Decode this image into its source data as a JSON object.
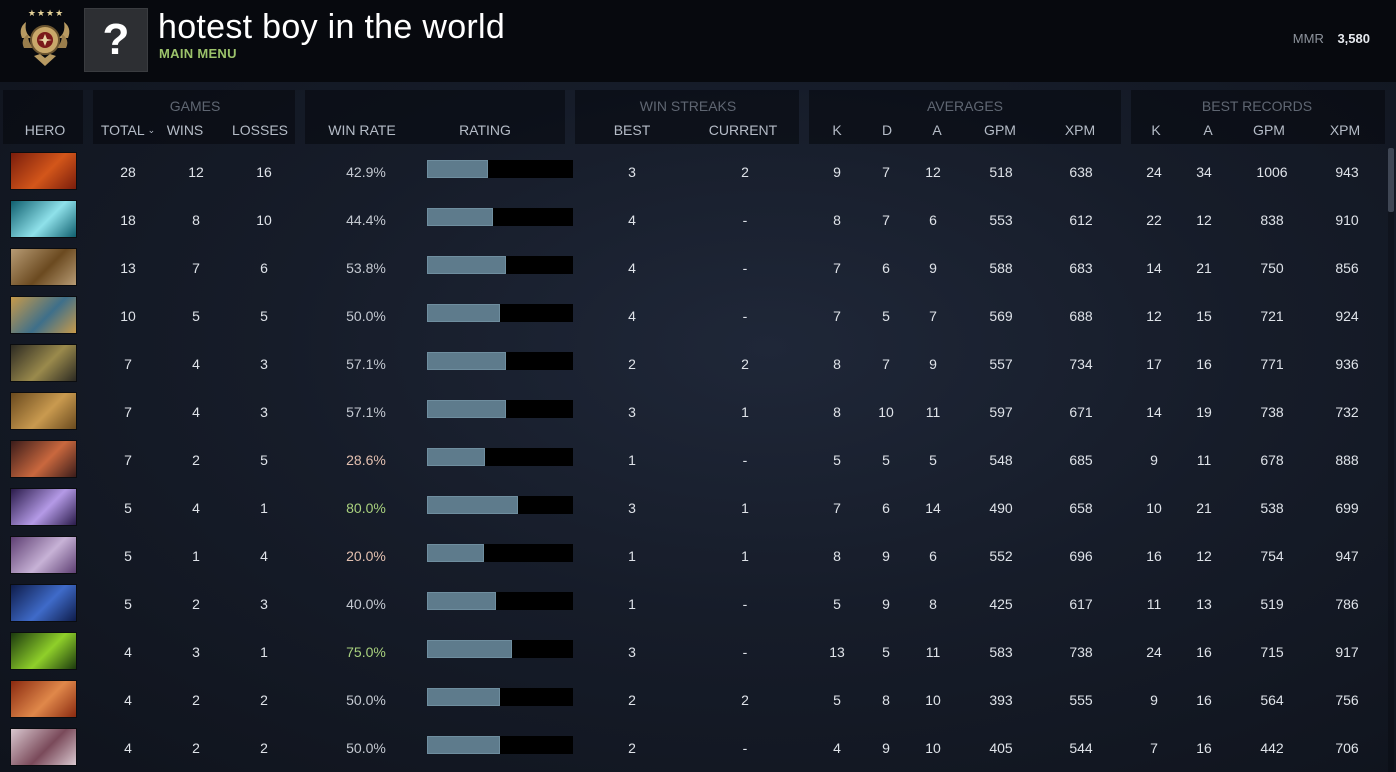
{
  "player": {
    "name": "hotest boy in the world",
    "subtitle": "MAIN MENU",
    "avatar_glyph": "?",
    "rank_stars": "★★★★",
    "mmr_label": "MMR",
    "mmr_value": "3,580"
  },
  "headers": {
    "hero": "HERO",
    "games": "GAMES",
    "total": "TOTAL",
    "sort_caret": "⌄",
    "wins": "WINS",
    "losses": "LOSSES",
    "win_rate": "WIN RATE",
    "rating": "RATING",
    "win_streaks": "WIN STREAKS",
    "best": "BEST",
    "current": "CURRENT",
    "averages": "AVERAGES",
    "k": "K",
    "d": "D",
    "a": "A",
    "gpm": "GPM",
    "xpm": "XPM",
    "best_records": "BEST RECORDS",
    "br_k": "K",
    "br_a": "A",
    "br_gpm": "GPM",
    "br_xpm": "XPM"
  },
  "colors": {
    "win_rate_high": "#a9d17e",
    "win_rate_low": "#e3c0b0",
    "win_rate_mid": "#c4c9d1",
    "rating_bar": "#5e7b8c",
    "main_menu": "#9cc36b"
  },
  "rows": [
    {
      "hero_icon": "hero-fire-warrior-portrait",
      "portrait": [
        "#7a1d0c",
        "#d3561a"
      ],
      "total": "28",
      "wins": "12",
      "losses": "16",
      "win_rate": "42.9%",
      "rating": 0.42,
      "best_streak": "3",
      "current_streak": "2",
      "k": "9",
      "d": "7",
      "a": "12",
      "gpm": "518",
      "xpm": "638",
      "best_k": "24",
      "best_a": "34",
      "best_gpm": "1006",
      "best_xpm": "943"
    },
    {
      "hero_icon": "hero-water-wave-portrait",
      "portrait": [
        "#0f5f6e",
        "#8fe1ea"
      ],
      "total": "18",
      "wins": "8",
      "losses": "10",
      "win_rate": "44.4%",
      "rating": 0.45,
      "best_streak": "4",
      "current_streak": "-",
      "k": "8",
      "d": "7",
      "a": "6",
      "gpm": "553",
      "xpm": "612",
      "best_k": "22",
      "best_a": "12",
      "best_gpm": "838",
      "best_xpm": "910"
    },
    {
      "hero_icon": "hero-beastmaster-portrait",
      "portrait": [
        "#b79b74",
        "#6b4a20"
      ],
      "total": "13",
      "wins": "7",
      "losses": "6",
      "win_rate": "53.8%",
      "rating": 0.54,
      "best_streak": "4",
      "current_streak": "-",
      "k": "7",
      "d": "6",
      "a": "9",
      "gpm": "588",
      "xpm": "683",
      "best_k": "14",
      "best_a": "21",
      "best_gpm": "750",
      "best_xpm": "856"
    },
    {
      "hero_icon": "hero-frost-knight-portrait",
      "portrait": [
        "#c79a4a",
        "#3e6f8a"
      ],
      "total": "10",
      "wins": "5",
      "losses": "5",
      "win_rate": "50.0%",
      "rating": 0.5,
      "best_streak": "4",
      "current_streak": "-",
      "k": "7",
      "d": "5",
      "a": "7",
      "gpm": "569",
      "xpm": "688",
      "best_k": "12",
      "best_a": "15",
      "best_gpm": "721",
      "best_xpm": "924"
    },
    {
      "hero_icon": "hero-masked-rider-portrait",
      "portrait": [
        "#2c2a22",
        "#9a8a4c"
      ],
      "total": "7",
      "wins": "4",
      "losses": "3",
      "win_rate": "57.1%",
      "rating": 0.54,
      "best_streak": "2",
      "current_streak": "2",
      "k": "8",
      "d": "7",
      "a": "9",
      "gpm": "557",
      "xpm": "734",
      "best_k": "17",
      "best_a": "16",
      "best_gpm": "771",
      "best_xpm": "936"
    },
    {
      "hero_icon": "hero-monkey-king-portrait",
      "portrait": [
        "#6a4a1e",
        "#c99a4f"
      ],
      "total": "7",
      "wins": "4",
      "losses": "3",
      "win_rate": "57.1%",
      "rating": 0.54,
      "best_streak": "3",
      "current_streak": "1",
      "k": "8",
      "d": "10",
      "a": "11",
      "gpm": "597",
      "xpm": "671",
      "best_k": "14",
      "best_a": "19",
      "best_gpm": "738",
      "best_xpm": "732"
    },
    {
      "hero_icon": "hero-hooded-assassin-portrait",
      "portrait": [
        "#3b1c1a",
        "#c9683e"
      ],
      "total": "7",
      "wins": "2",
      "losses": "5",
      "win_rate": "28.6%",
      "rating": 0.4,
      "best_streak": "1",
      "current_streak": "-",
      "k": "5",
      "d": "5",
      "a": "5",
      "gpm": "548",
      "xpm": "685",
      "best_k": "9",
      "best_a": "11",
      "best_gpm": "678",
      "best_xpm": "888"
    },
    {
      "hero_icon": "hero-void-spirit-portrait",
      "portrait": [
        "#2a1b4a",
        "#b49ae6"
      ],
      "total": "5",
      "wins": "4",
      "losses": "1",
      "win_rate": "80.0%",
      "rating": 0.62,
      "best_streak": "3",
      "current_streak": "1",
      "k": "7",
      "d": "6",
      "a": "14",
      "gpm": "490",
      "xpm": "658",
      "best_k": "10",
      "best_a": "21",
      "best_gpm": "538",
      "best_xpm": "699"
    },
    {
      "hero_icon": "hero-templar-portrait",
      "portrait": [
        "#5e3f73",
        "#c7b2d6"
      ],
      "total": "5",
      "wins": "1",
      "losses": "4",
      "win_rate": "20.0%",
      "rating": 0.39,
      "best_streak": "1",
      "current_streak": "1",
      "k": "8",
      "d": "9",
      "a": "6",
      "gpm": "552",
      "xpm": "696",
      "best_k": "16",
      "best_a": "12",
      "best_gpm": "754",
      "best_xpm": "947"
    },
    {
      "hero_icon": "hero-night-stalker-portrait",
      "portrait": [
        "#0e1c4a",
        "#3f6bc9"
      ],
      "total": "5",
      "wins": "2",
      "losses": "3",
      "win_rate": "40.0%",
      "rating": 0.47,
      "best_streak": "1",
      "current_streak": "-",
      "k": "5",
      "d": "9",
      "a": "8",
      "gpm": "425",
      "xpm": "617",
      "best_k": "11",
      "best_a": "13",
      "best_gpm": "519",
      "best_xpm": "786"
    },
    {
      "hero_icon": "hero-venom-portrait",
      "portrait": [
        "#1c3a0e",
        "#8fcf2a"
      ],
      "total": "4",
      "wins": "3",
      "losses": "1",
      "win_rate": "75.0%",
      "rating": 0.58,
      "best_streak": "3",
      "current_streak": "-",
      "k": "13",
      "d": "5",
      "a": "11",
      "gpm": "583",
      "xpm": "738",
      "best_k": "24",
      "best_a": "16",
      "best_gpm": "715",
      "best_xpm": "917"
    },
    {
      "hero_icon": "hero-dwarf-gunner-portrait",
      "portrait": [
        "#8a2a10",
        "#e0884a"
      ],
      "total": "4",
      "wins": "2",
      "losses": "2",
      "win_rate": "50.0%",
      "rating": 0.5,
      "best_streak": "2",
      "current_streak": "2",
      "k": "5",
      "d": "8",
      "a": "10",
      "gpm": "393",
      "xpm": "555",
      "best_k": "9",
      "best_a": "16",
      "best_gpm": "564",
      "best_xpm": "756"
    },
    {
      "hero_icon": "hero-crystal-maiden-portrait",
      "portrait": [
        "#d9c7cf",
        "#7a4a5a"
      ],
      "total": "4",
      "wins": "2",
      "losses": "2",
      "win_rate": "50.0%",
      "rating": 0.5,
      "best_streak": "2",
      "current_streak": "-",
      "k": "4",
      "d": "9",
      "a": "10",
      "gpm": "405",
      "xpm": "544",
      "best_k": "7",
      "best_a": "16",
      "best_gpm": "442",
      "best_xpm": "706"
    }
  ]
}
